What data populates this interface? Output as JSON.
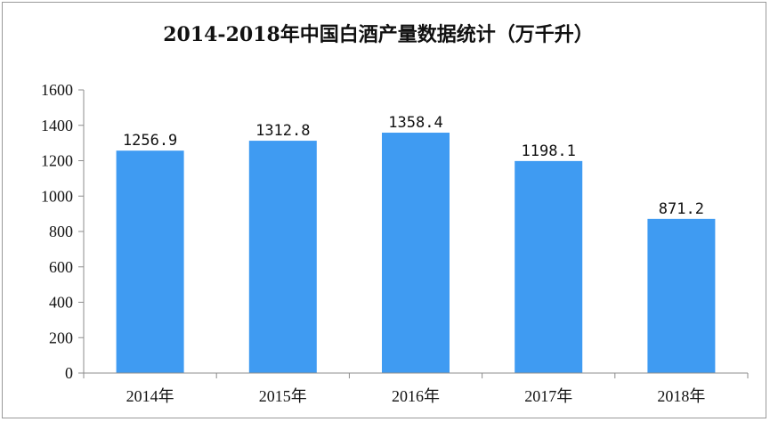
{
  "chart_data": {
    "type": "bar",
    "title": "2014-2018年中国白酒产量数据统计（万千升）",
    "categories": [
      "2014年",
      "2015年",
      "2016年",
      "2017年",
      "2018年"
    ],
    "values": [
      1256.9,
      1312.8,
      1358.4,
      1198.1,
      871.2
    ],
    "data_labels": [
      "1256.9",
      "1312.8",
      "1358.4",
      "1198.1",
      "871.2"
    ],
    "xlabel": "",
    "ylabel": "",
    "ylim": [
      0,
      1600
    ],
    "yticks": [
      0,
      200,
      400,
      600,
      800,
      1000,
      1200,
      1400,
      1600
    ],
    "grid": false,
    "legend": "none",
    "bar_color": "#3f9bf2"
  }
}
